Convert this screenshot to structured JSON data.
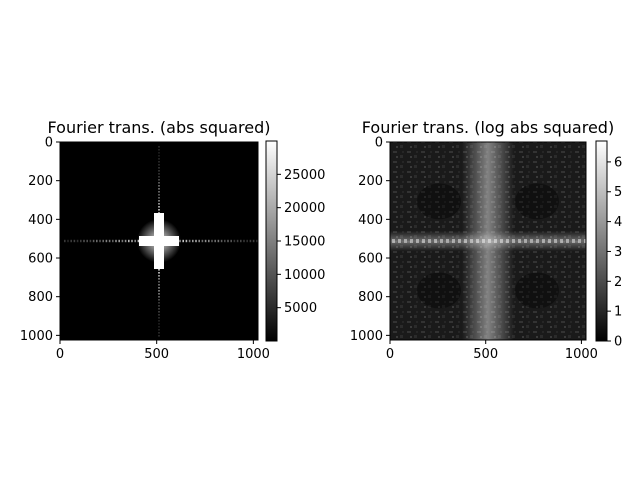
{
  "chart_data": [
    {
      "type": "heatmap",
      "title": "Fourier trans. (abs squared)",
      "colormap": "gray",
      "xlim": [
        0,
        1024
      ],
      "ylim": [
        1024,
        0
      ],
      "xticks": [
        0,
        500,
        1000
      ],
      "yticks": [
        0,
        200,
        400,
        600,
        800,
        1000
      ],
      "colorbar": {
        "min": 0,
        "max": 30000,
        "ticks": [
          5000,
          10000,
          15000,
          20000,
          25000
        ]
      },
      "features": {
        "center": [
          512,
          512
        ],
        "pattern": "bright cross at center, horizontal dotted line at y=512, thin vertical line at x=512",
        "background_level": 100,
        "peak_level": 30000
      }
    },
    {
      "type": "heatmap",
      "title": "Fourier trans. (log abs squared)",
      "colormap": "gray",
      "xlim": [
        0,
        1024
      ],
      "ylim": [
        1024,
        0
      ],
      "xticks": [
        0,
        500,
        1000
      ],
      "yticks": [
        0,
        200,
        400,
        600,
        800,
        1000
      ],
      "colorbar": {
        "min": 0,
        "max": 6.7,
        "ticks": [
          0,
          1,
          2,
          3,
          4,
          5,
          6
        ]
      },
      "features": {
        "center": [
          512,
          512
        ],
        "pattern": "bright vertical band around x=512, bright horizontal band around y=512, mottled texture elsewhere",
        "background_level": 1.5,
        "peak_level": 6.5
      }
    }
  ]
}
